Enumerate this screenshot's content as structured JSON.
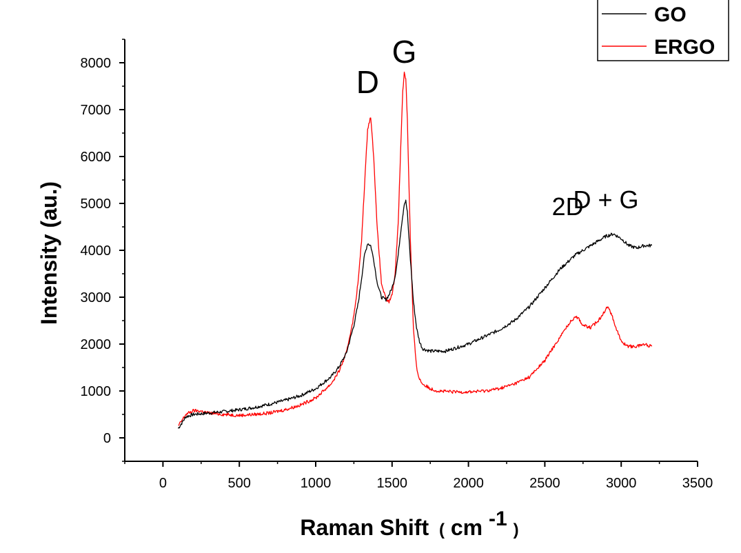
{
  "chart_data": {
    "type": "line",
    "title": "",
    "xlabel": "Raman Shift",
    "xlabel_unit_open": "(",
    "xlabel_unit": "cm",
    "xlabel_unit_exp": "-1",
    "xlabel_unit_close": ")",
    "ylabel": "Intensity (au.)",
    "xlim": [
      -250,
      3500
    ],
    "ylim": [
      -500,
      8500
    ],
    "x_ticks": [
      0,
      500,
      1000,
      1500,
      2000,
      2500,
      3000,
      3500
    ],
    "y_ticks": [
      0,
      1000,
      2000,
      3000,
      4000,
      5000,
      6000,
      7000,
      8000
    ],
    "x_tick_labels": [
      "0",
      "500",
      "1000",
      "1500",
      "2000",
      "2500",
      "3000",
      "3500"
    ],
    "y_tick_labels": [
      "0",
      "1000",
      "2000",
      "3000",
      "4000",
      "5000",
      "6000",
      "7000",
      "8000"
    ],
    "grid": false,
    "legend_position": "top-right",
    "annotations": [
      {
        "text": "D",
        "x": 1340,
        "y": 7350
      },
      {
        "text": "G",
        "x": 1580,
        "y": 8000
      },
      {
        "text": "2D",
        "x": 2650,
        "y": 4750
      },
      {
        "text": "D + G",
        "x": 2900,
        "y": 4900
      }
    ],
    "series": [
      {
        "name": "GO",
        "color": "#000000",
        "x": [
          100,
          150,
          200,
          300,
          400,
          500,
          600,
          700,
          800,
          900,
          1000,
          1100,
          1150,
          1200,
          1250,
          1280,
          1300,
          1320,
          1340,
          1360,
          1380,
          1400,
          1430,
          1460,
          1480,
          1500,
          1520,
          1540,
          1560,
          1580,
          1590,
          1600,
          1620,
          1640,
          1660,
          1680,
          1700,
          1750,
          1800,
          1850,
          1900,
          2000,
          2100,
          2200,
          2300,
          2400,
          2500,
          2600,
          2700,
          2800,
          2900,
          2950,
          3000,
          3050,
          3100,
          3150,
          3200
        ],
        "y": [
          200,
          450,
          500,
          530,
          560,
          600,
          650,
          720,
          800,
          900,
          1050,
          1300,
          1500,
          1800,
          2400,
          2900,
          3400,
          3900,
          4150,
          4100,
          3800,
          3350,
          3000,
          2950,
          3050,
          3200,
          3450,
          3900,
          4500,
          5000,
          5050,
          4800,
          3800,
          2900,
          2350,
          2050,
          1900,
          1850,
          1850,
          1850,
          1900,
          2000,
          2150,
          2300,
          2500,
          2800,
          3200,
          3600,
          3900,
          4100,
          4300,
          4350,
          4250,
          4100,
          4050,
          4100,
          4100
        ]
      },
      {
        "name": "ERGO",
        "color": "#ff0000",
        "x": [
          100,
          150,
          200,
          250,
          300,
          400,
          500,
          600,
          700,
          800,
          900,
          1000,
          1100,
          1150,
          1200,
          1250,
          1280,
          1300,
          1320,
          1340,
          1360,
          1380,
          1400,
          1430,
          1460,
          1480,
          1500,
          1520,
          1540,
          1560,
          1570,
          1580,
          1590,
          1600,
          1620,
          1640,
          1660,
          1680,
          1700,
          1750,
          1800,
          1900,
          2000,
          2100,
          2200,
          2300,
          2400,
          2500,
          2550,
          2600,
          2650,
          2700,
          2720,
          2750,
          2800,
          2850,
          2900,
          2920,
          2950,
          3000,
          3050,
          3100,
          3150,
          3200
        ],
        "y": [
          250,
          500,
          580,
          570,
          530,
          500,
          480,
          500,
          530,
          600,
          700,
          850,
          1150,
          1400,
          1800,
          2600,
          3400,
          4200,
          5400,
          6600,
          6850,
          6000,
          4600,
          3300,
          2950,
          2900,
          3050,
          3500,
          4600,
          6500,
          7400,
          7800,
          7650,
          6800,
          4200,
          2300,
          1500,
          1250,
          1150,
          1050,
          1000,
          980,
          980,
          1000,
          1050,
          1150,
          1300,
          1650,
          1900,
          2150,
          2400,
          2600,
          2550,
          2400,
          2350,
          2500,
          2750,
          2780,
          2500,
          2050,
          1950,
          1950,
          2000,
          1950
        ]
      }
    ]
  }
}
